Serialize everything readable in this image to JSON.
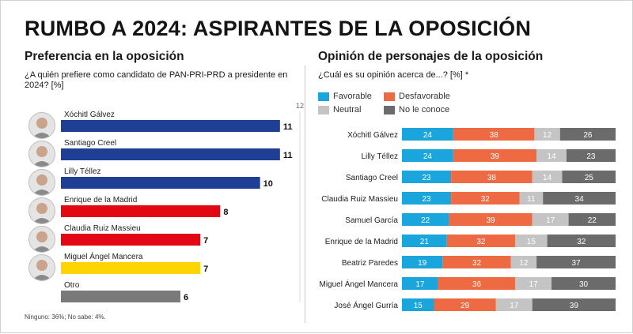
{
  "title": "RUMBO A 2024: ASPIRANTES DE LA OPOSICIÓN",
  "left": {
    "subtitle": "Preferencia en la oposición",
    "question": "¿A quién prefiere como candidato de PAN-PRI-PRD a presidente en 2024? [%]",
    "axis_max_label": "12",
    "footnote": "Ninguno: 36%; No sabe: 4%."
  },
  "right": {
    "subtitle": "Opinión de personajes de la oposición",
    "question": "¿Cuál es su opinión acerca de...? [%] *",
    "legend": {
      "favorable": "Favorable",
      "desfavorable": "Desfavorable",
      "neutral": "Neutral",
      "no_conoce": "No le conoce"
    }
  },
  "colors": {
    "blue_bar": "#1f3f95",
    "red_bar": "#e30613",
    "yellow_bar": "#ffd400",
    "gray_bar": "#7a7a7a",
    "favorable": "#1aa6dc",
    "desfavorable": "#ee6a43",
    "neutral": "#c4c4c4",
    "no_conoce": "#6b6b6b"
  },
  "chart_data": [
    {
      "type": "bar",
      "orientation": "horizontal",
      "categories": [
        "Xóchitl Gálvez",
        "Santiago Creel",
        "Lilly Téllez",
        "Enrique de la Madrid",
        "Claudia Ruiz Massieu",
        "Miguel Ángel Mancera",
        "Otro"
      ],
      "values": [
        11,
        11,
        10,
        8,
        7,
        7,
        6
      ],
      "bar_colors": [
        "blue",
        "blue",
        "blue",
        "red",
        "red",
        "yellow",
        "gray"
      ],
      "xlim": [
        0,
        12
      ]
    },
    {
      "type": "bar",
      "orientation": "horizontal",
      "stacked": true,
      "categories": [
        "Xóchitl Gálvez",
        "Lilly Téllez",
        "Santiago Creel",
        "Claudia Ruiz Massieu",
        "Samuel García",
        "Enrique de la Madrid",
        "Beatriz Paredes",
        "Miguel Ángel Mancera",
        "José Ángel Gurría"
      ],
      "series": [
        {
          "name": "Favorable",
          "values": [
            24,
            24,
            23,
            23,
            22,
            21,
            19,
            17,
            15
          ]
        },
        {
          "name": "Desfavorable",
          "values": [
            38,
            39,
            38,
            32,
            39,
            32,
            32,
            36,
            29
          ]
        },
        {
          "name": "Neutral",
          "values": [
            12,
            14,
            14,
            11,
            17,
            15,
            12,
            17,
            17
          ]
        },
        {
          "name": "No le conoce",
          "values": [
            26,
            23,
            25,
            34,
            22,
            32,
            37,
            30,
            39
          ]
        }
      ],
      "legend_position": "top"
    }
  ]
}
